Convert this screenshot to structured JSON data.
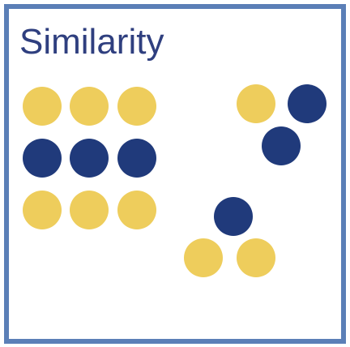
{
  "title": "Similarity",
  "colors": {
    "yellow": "#eecd5c",
    "navy": "#203a7b",
    "border": "#5b7fb7",
    "title_text": "#2f3f7f"
  },
  "groups": {
    "grid": {
      "rows": [
        [
          "yellow",
          "yellow",
          "yellow"
        ],
        [
          "navy",
          "navy",
          "navy"
        ],
        [
          "yellow",
          "yellow",
          "yellow"
        ]
      ]
    },
    "top_right_cluster": [
      "yellow",
      "navy",
      "navy"
    ],
    "bottom_cluster": [
      "navy",
      "yellow",
      "yellow"
    ]
  }
}
